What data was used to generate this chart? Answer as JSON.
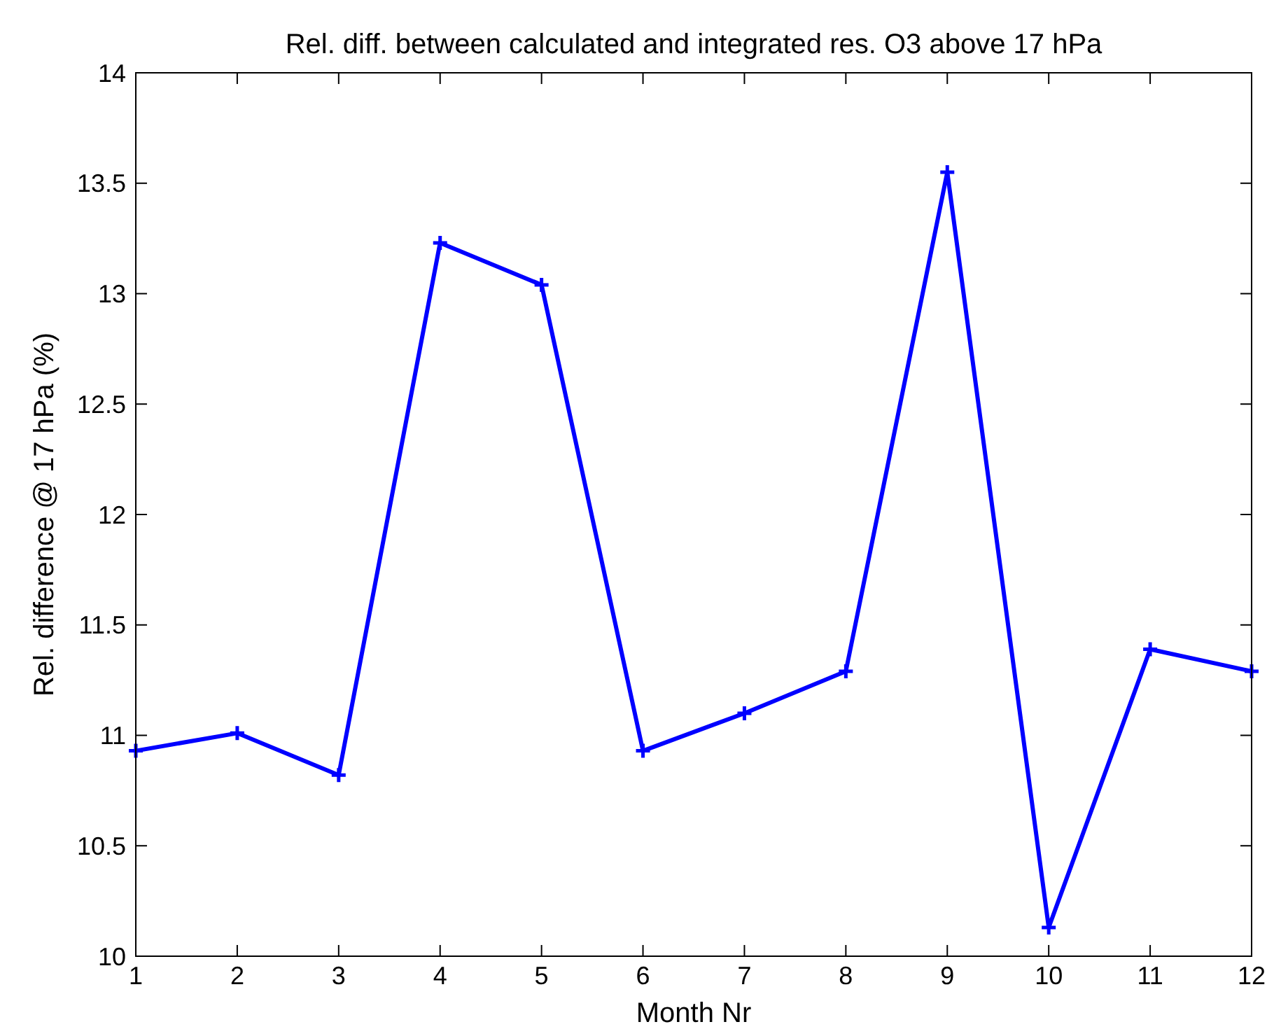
{
  "chart_data": {
    "type": "line",
    "title": "Rel. diff. between calculated and integrated res. O3 above 17 hPa",
    "xlabel": "Month Nr",
    "ylabel": "Rel. difference @ 17 hPa (%)",
    "x": [
      1,
      2,
      3,
      4,
      5,
      6,
      7,
      8,
      9,
      10,
      11,
      12
    ],
    "series": [
      {
        "color": "#0000ff",
        "values": [
          10.93,
          11.01,
          10.82,
          13.23,
          13.04,
          10.93,
          11.1,
          11.29,
          13.55,
          10.13,
          11.39,
          11.29
        ]
      }
    ],
    "xlim": [
      1,
      12
    ],
    "xticks": [
      1,
      2,
      3,
      4,
      5,
      6,
      7,
      8,
      9,
      10,
      11,
      12
    ],
    "ylim": [
      10,
      14
    ],
    "yticks": [
      10,
      10.5,
      11,
      11.5,
      12,
      12.5,
      13,
      13.5,
      14
    ],
    "grid": false,
    "marker": "cross",
    "line_style": "solid"
  }
}
